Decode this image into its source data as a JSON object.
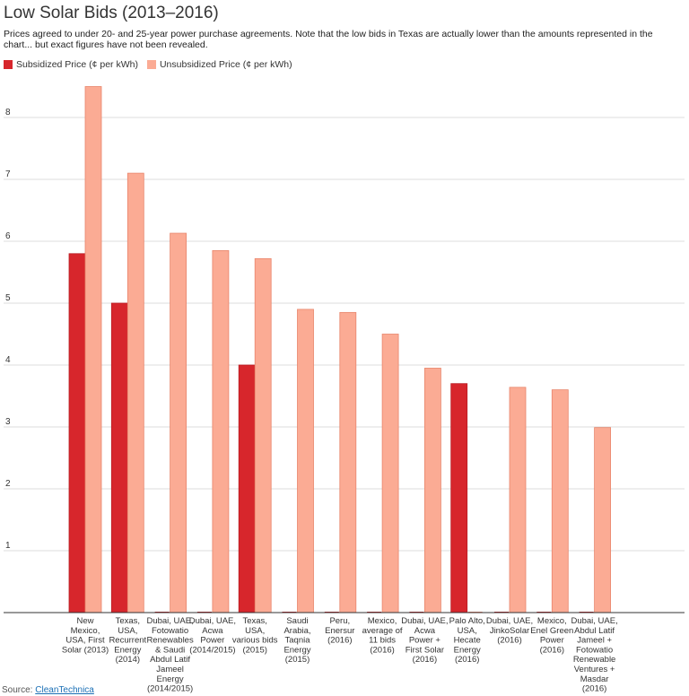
{
  "title": "Low Solar Bids (2013–2016)",
  "subtitle": "Prices agreed to under 20- and 25-year power purchase agreements. Note that the low bids in Texas are actually lower than the amounts represented in the chart... but exact figures have not been revealed.",
  "source_label": "Source:",
  "source_link": "CleanTechnica",
  "colors": {
    "subsidized": "#d7262c",
    "unsubsidized": "#fbab94",
    "grid": "#dcdcdc",
    "axis": "#333333"
  },
  "chart_data": {
    "type": "bar",
    "title": "Low Solar Bids (2013–2016)",
    "xlabel": "",
    "ylabel": "",
    "ylim": [
      0,
      9
    ],
    "yticks": [
      1,
      2,
      3,
      4,
      5,
      6,
      7,
      8
    ],
    "grid": true,
    "legend_position": "top-left",
    "categories": [
      [
        "New",
        "Mexico,",
        "USA, First",
        "Solar (2013)"
      ],
      [
        "Texas,",
        "USA,",
        "Recurrent",
        "Energy",
        "(2014)"
      ],
      [
        "Dubai, UAE,",
        "Fotowatio",
        "Renewables",
        "& Saudi",
        "Abdul Latif",
        "Jameel",
        "Energy",
        "(2014/2015)"
      ],
      [
        "Dubai, UAE,",
        "Acwa",
        "Power",
        "(2014/2015)"
      ],
      [
        "Texas,",
        "USA,",
        "various bids",
        "(2015)"
      ],
      [
        "Saudi",
        "Arabia,",
        "Taqnia",
        "Energy",
        "(2015)"
      ],
      [
        "Peru,",
        "Enersur",
        "(2016)"
      ],
      [
        "Mexico,",
        "average of",
        "11 bids",
        "(2016)"
      ],
      [
        "Dubai, UAE,",
        "Acwa",
        "Power +",
        "First Solar",
        "(2016)"
      ],
      [
        "Palo Alto,",
        "USA,",
        "Hecate",
        "Energy",
        "(2016)"
      ],
      [
        "Dubai, UAE,",
        "JinkoSolar",
        "(2016)"
      ],
      [
        "Mexico,",
        "Enel Green",
        "Power",
        "(2016)"
      ],
      [
        "Dubai, UAE,",
        "Abdul Latif",
        "Jameel +",
        "Fotowatio",
        "Renewable",
        "Ventures +",
        "Masdar",
        "(2016)"
      ]
    ],
    "series": [
      {
        "name": "Subsidized Price (¢ per kWh)",
        "values": [
          5.8,
          5.0,
          null,
          null,
          4.0,
          null,
          null,
          null,
          null,
          3.7,
          null,
          null,
          null
        ]
      },
      {
        "name": "Unsubsidized Price (¢ per kWh)",
        "values": [
          8.5,
          7.1,
          6.13,
          5.85,
          5.72,
          4.9,
          4.85,
          4.5,
          3.95,
          null,
          3.64,
          3.6,
          2.99
        ]
      }
    ]
  }
}
